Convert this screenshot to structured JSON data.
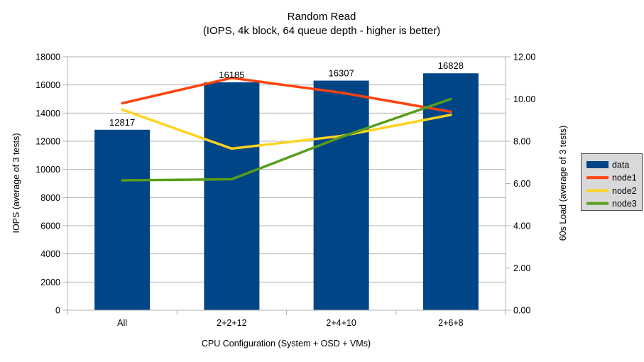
{
  "title": {
    "line1": "Random Read",
    "line2": "(IOPS, 4k block, 64 queue depth - higher is better)"
  },
  "chart_data": {
    "type": "combo-bar-line",
    "title": "Random Read",
    "subtitle": "(IOPS, 4k block, 64 queue depth - higher is better)",
    "categories": [
      "All",
      "2+2+12",
      "2+4+10",
      "2+6+8"
    ],
    "xlabel": "CPU Configuration (System + OSD + VMs)",
    "left_axis": {
      "label": "IOPS (average of 3 tests)",
      "lim": [
        0,
        18000
      ],
      "step": 2000,
      "ticks": [
        "0",
        "2000",
        "4000",
        "6000",
        "8000",
        "10000",
        "12000",
        "14000",
        "16000",
        "18000"
      ]
    },
    "right_axis": {
      "label": "60s Load (average of 3 tests)",
      "lim": [
        0,
        12
      ],
      "step": 2,
      "ticks": [
        "0.00",
        "2.00",
        "4.00",
        "6.00",
        "8.00",
        "10.00",
        "12.00"
      ]
    },
    "series": [
      {
        "name": "data",
        "type": "bar",
        "axis": "left",
        "color": "#004586",
        "values": [
          12817,
          16185,
          16307,
          16828
        ],
        "data_labels": [
          "12817",
          "16185",
          "16307",
          "16828"
        ]
      },
      {
        "name": "node1",
        "type": "line",
        "axis": "right",
        "color": "#ff420e",
        "values": [
          9.8,
          11.0,
          10.3,
          9.4
        ]
      },
      {
        "name": "node2",
        "type": "line",
        "axis": "right",
        "color": "#ffd320",
        "values": [
          9.5,
          7.65,
          8.25,
          9.25
        ]
      },
      {
        "name": "node3",
        "type": "line",
        "axis": "right",
        "color": "#579d1c",
        "values": [
          6.15,
          6.2,
          8.2,
          10.0
        ]
      }
    ],
    "grid": "horizontal",
    "gridline_color": "#b0b0b0",
    "legend_position": "right",
    "legend_bg": "#d9d9d9",
    "legend_border": "#4d4d4d",
    "background": "#ffffff"
  }
}
